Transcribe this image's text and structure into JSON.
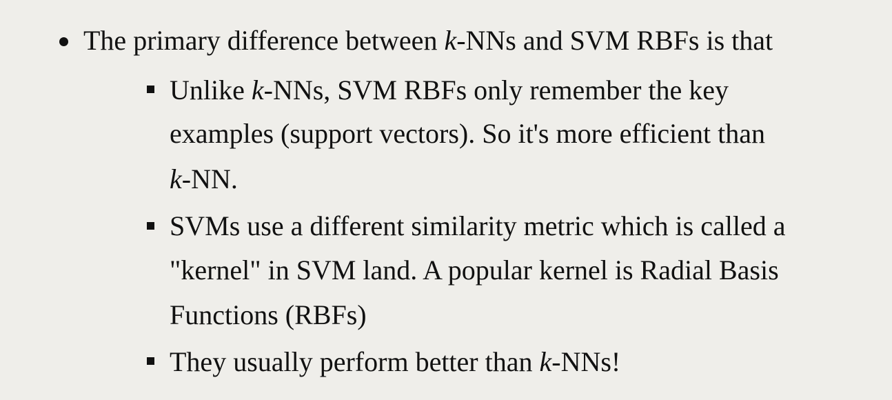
{
  "main_bullet": {
    "before": "The primary difference between ",
    "k": "k",
    "after": "-NNs and SVM RBFs is that"
  },
  "sub_bullets": [
    {
      "lines": [
        {
          "before": "Unlike ",
          "k": "k",
          "after": "-NNs, SVM RBFs only remember the key"
        },
        {
          "text": "examples (support vectors). So it's more efficient than"
        },
        {
          "k": "k",
          "after": "-NN."
        }
      ]
    },
    {
      "lines": [
        {
          "text": "SVMs use a different similarity metric which is called a"
        },
        {
          "text": "\"kernel\" in SVM land. A popular kernel is Radial Basis"
        },
        {
          "text": "Functions (RBFs)"
        }
      ]
    },
    {
      "lines": [
        {
          "before": "They usually perform better than ",
          "k": "k",
          "after": "-NNs!"
        }
      ]
    }
  ]
}
